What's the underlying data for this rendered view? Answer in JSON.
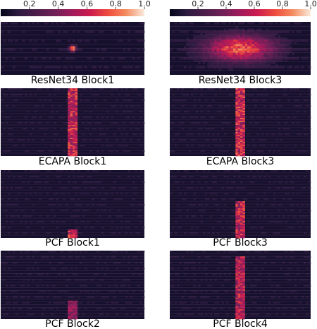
{
  "chart_data": {
    "type": "heatmap",
    "colormap": "rocket",
    "colorbars": [
      {
        "range": [
          0,
          1.0
        ],
        "ticks": [
          0.2,
          0.4,
          0.6,
          0.8,
          1.0
        ],
        "tick_labels": [
          "0.2",
          "0.4",
          "0.6",
          "0.8",
          "1.0"
        ]
      },
      {
        "range": [
          0,
          1.0
        ],
        "ticks": [
          0.2,
          0.4,
          0.6,
          0.8,
          1.0
        ],
        "tick_labels": [
          "0.2",
          "0.4",
          "0.6",
          "0.8",
          "1.0"
        ]
      }
    ],
    "panels": [
      {
        "title": "ResNet34 Block1",
        "pattern": "spot",
        "rows": 24,
        "cols": 60,
        "center_x": 0.5,
        "center_y": 0.5,
        "spread_x": 0.015,
        "spread_y": 0.04,
        "peak": 0.95
      },
      {
        "title": "ResNet34 Block3",
        "pattern": "blob",
        "rows": 24,
        "cols": 60,
        "center_x": 0.5,
        "center_y": 0.5,
        "spread_x": 0.17,
        "spread_y": 0.17,
        "peak": 0.78
      },
      {
        "title": "ECAPA Block1",
        "pattern": "column",
        "rows": 48,
        "cols": 60,
        "column_x": [
          0.47,
          0.53
        ],
        "y_extent": [
          0.0,
          1.0
        ],
        "peak": 0.72
      },
      {
        "title": "ECAPA Block3",
        "pattern": "column",
        "rows": 48,
        "cols": 60,
        "column_x": [
          0.46,
          0.54
        ],
        "y_extent": [
          0.0,
          1.0
        ],
        "peak": 0.75
      },
      {
        "title": "PCF Block1",
        "pattern": "column",
        "rows": 48,
        "cols": 60,
        "column_x": [
          0.46,
          0.54
        ],
        "y_extent": [
          0.88,
          1.0
        ],
        "peak": 0.75
      },
      {
        "title": "PCF Block3",
        "pattern": "column",
        "rows": 48,
        "cols": 60,
        "column_x": [
          0.46,
          0.54
        ],
        "y_extent": [
          0.45,
          1.0
        ],
        "peak": 0.7
      },
      {
        "title": "PCF Block2",
        "pattern": "column",
        "rows": 48,
        "cols": 60,
        "column_x": [
          0.46,
          0.54
        ],
        "y_extent": [
          0.73,
          1.0
        ],
        "peak": 0.55
      },
      {
        "title": "PCF Block4",
        "pattern": "column",
        "rows": 48,
        "cols": 60,
        "column_x": [
          0.46,
          0.54
        ],
        "y_extent": [
          0.08,
          1.0
        ],
        "peak": 0.68
      }
    ]
  }
}
